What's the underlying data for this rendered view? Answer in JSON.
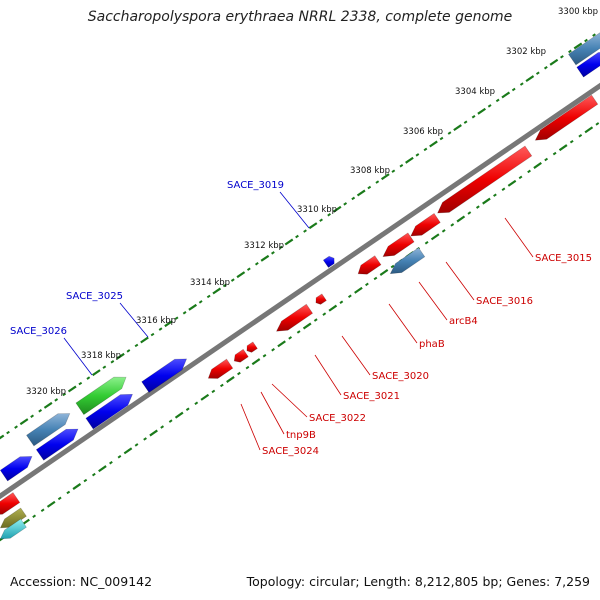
{
  "title": "Saccharopolyspora erythraea NRRL 2338, complete genome",
  "footer": {
    "accession": "Accession: NC_009142",
    "summary": "Topology: circular; Length: 8,212,805 bp; Genes: 7,259"
  },
  "colors": {
    "backbone": "#6e6e6e",
    "ticks": "#1a7a1a",
    "forward_label": "#0000cc",
    "reverse_label": "#cc0000",
    "red_gene": "#ee0000",
    "blue_gene": "#0000ee",
    "steel_gene": "#4682b4",
    "green_gene": "#33cc33"
  },
  "scale": {
    "unit": "kbp",
    "ticks": [
      {
        "label": "3300 kbp"
      },
      {
        "label": "3302 kbp"
      },
      {
        "label": "3304 kbp"
      },
      {
        "label": "3306 kbp"
      },
      {
        "label": "3308 kbp"
      },
      {
        "label": "3310 kbp"
      },
      {
        "label": "3312 kbp"
      },
      {
        "label": "3314 kbp"
      },
      {
        "label": "3316 kbp"
      },
      {
        "label": "3318 kbp"
      },
      {
        "label": "3320 kbp"
      }
    ]
  },
  "gene_labels": {
    "forward": [
      {
        "name": "SACE_3019"
      },
      {
        "name": "SACE_3025"
      },
      {
        "name": "SACE_3026"
      }
    ],
    "reverse": [
      {
        "name": "SACE_3015"
      },
      {
        "name": "SACE_3016"
      },
      {
        "name": "arcB4"
      },
      {
        "name": "phaB"
      },
      {
        "name": "SACE_3020"
      },
      {
        "name": "SACE_3021"
      },
      {
        "name": "SACE_3022"
      },
      {
        "name": "tnp9B"
      },
      {
        "name": "SACE_3024"
      }
    ]
  }
}
